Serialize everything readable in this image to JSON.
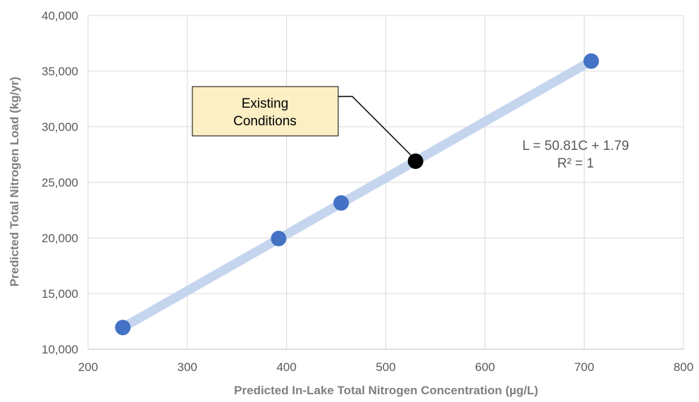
{
  "chart_data": {
    "type": "scatter",
    "xlabel": "Predicted In-Lake Total Nitrogen Concentration (µg/L)",
    "ylabel": "Predicted Total Nitrogen Load (kg/yr)",
    "xlim": [
      200,
      800
    ],
    "ylim": [
      10000,
      40000
    ],
    "x_ticks": [
      200,
      300,
      400,
      500,
      600,
      700,
      800
    ],
    "y_ticks": [
      10000,
      15000,
      20000,
      25000,
      30000,
      35000,
      40000
    ],
    "x_tick_labels": [
      "200",
      "300",
      "400",
      "500",
      "600",
      "700",
      "800"
    ],
    "y_tick_labels": [
      "10,000",
      "15,000",
      "20,000",
      "25,000",
      "30,000",
      "35,000",
      "40,000"
    ],
    "grid": true,
    "series": [
      {
        "color": "#4472c4",
        "points": [
          {
            "x": 235,
            "y": 11950
          },
          {
            "x": 392,
            "y": 19950
          },
          {
            "x": 455,
            "y": 23150
          },
          {
            "x": 707,
            "y": 35900
          }
        ]
      },
      {
        "color": "#000000",
        "points": [
          {
            "x": 530,
            "y": 26900
          }
        ]
      }
    ],
    "trendline": {
      "color": "#c5d5ee",
      "from": {
        "x": 235,
        "y": 11950
      },
      "to": {
        "x": 707,
        "y": 35900
      },
      "equation": "L = 50.81C + 1.79",
      "r_squared": "R² = 1"
    },
    "annotation": {
      "lines": [
        "Existing",
        "Conditions"
      ],
      "fill": "#fcefc4",
      "target": {
        "x": 530,
        "y": 26900
      }
    }
  }
}
